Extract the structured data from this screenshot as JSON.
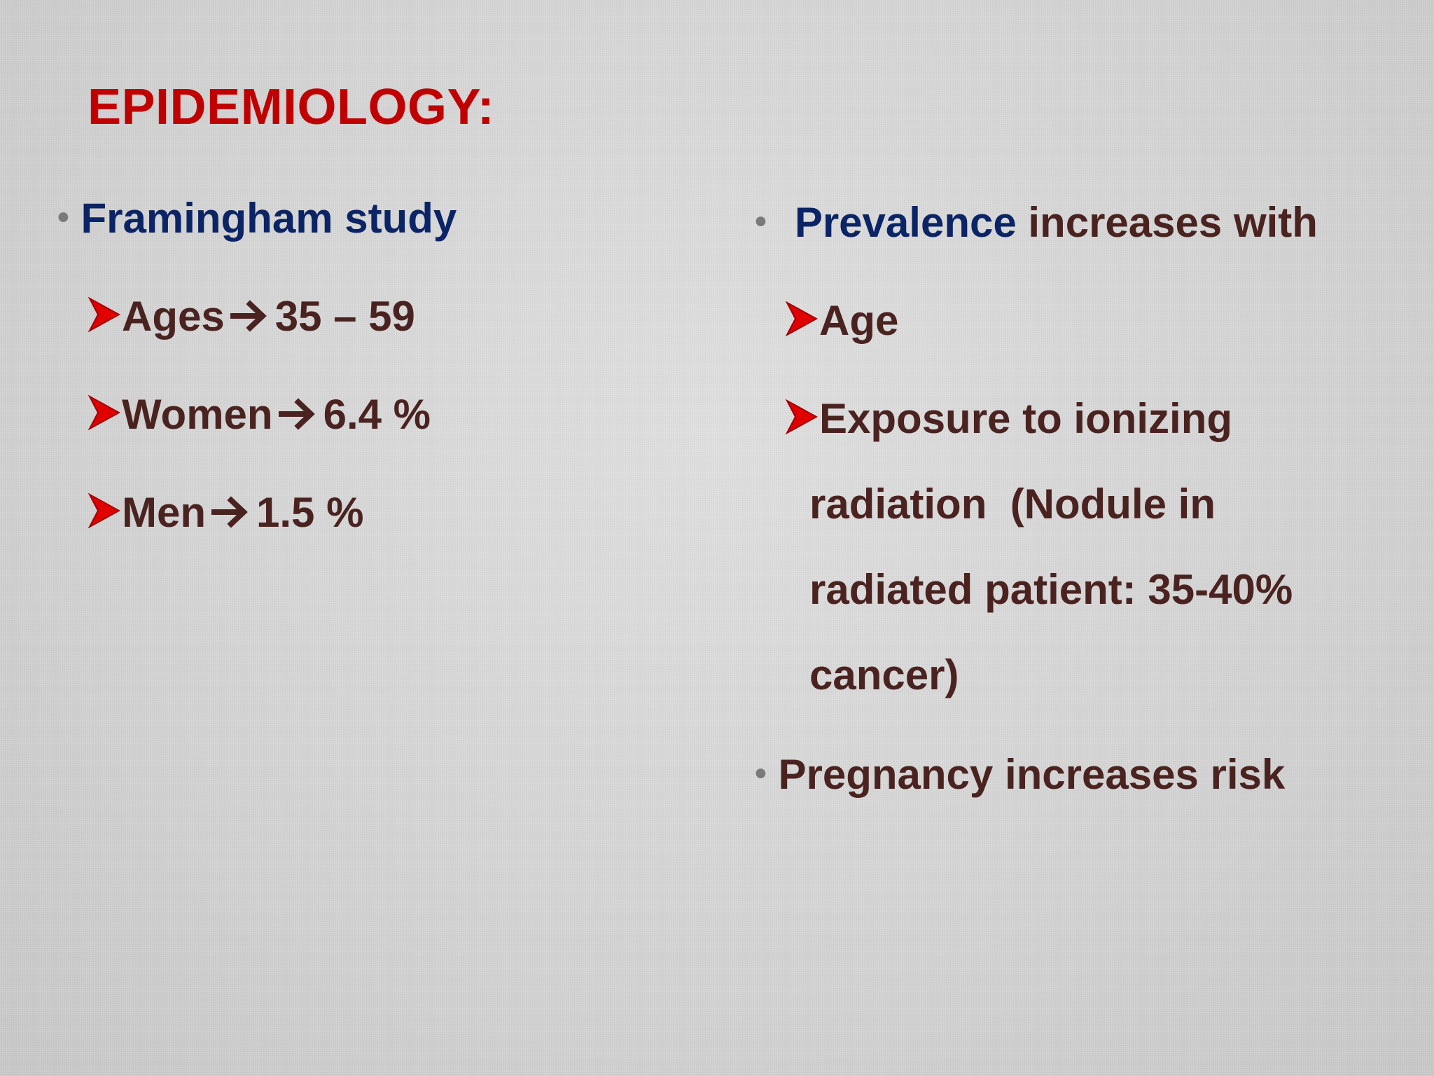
{
  "slide": {
    "title": "EPIDEMIOLOGY:",
    "left_column": {
      "heading": "Framingham study",
      "items": [
        {
          "label": "Ages",
          "value": "35 – 59"
        },
        {
          "label": "Women",
          "value": "6.4 %"
        },
        {
          "label": "Men",
          "value": "1.5 %"
        }
      ]
    },
    "right_column": {
      "heading_part1": "Prevalence",
      "heading_part2": "increases with",
      "items": [
        {
          "text": "Age"
        },
        {
          "lines": [
            "Exposure to ionizing",
            "radiation  (Nodule in",
            "radiated patient: 35-40%",
            "cancer)"
          ]
        }
      ],
      "closing_bullet": "Pregnancy increases risk"
    }
  },
  "colors": {
    "title": "#c00000",
    "heading_blue": "#0b2466",
    "body_brown": "#4a2320",
    "arrow_red": "#e00000",
    "bullet_gray": "#7a7a7a"
  },
  "icons": {
    "sub_bullet": "red-arrowhead-icon",
    "implies": "right-arrow-icon",
    "bullet": "round-bullet-icon"
  }
}
